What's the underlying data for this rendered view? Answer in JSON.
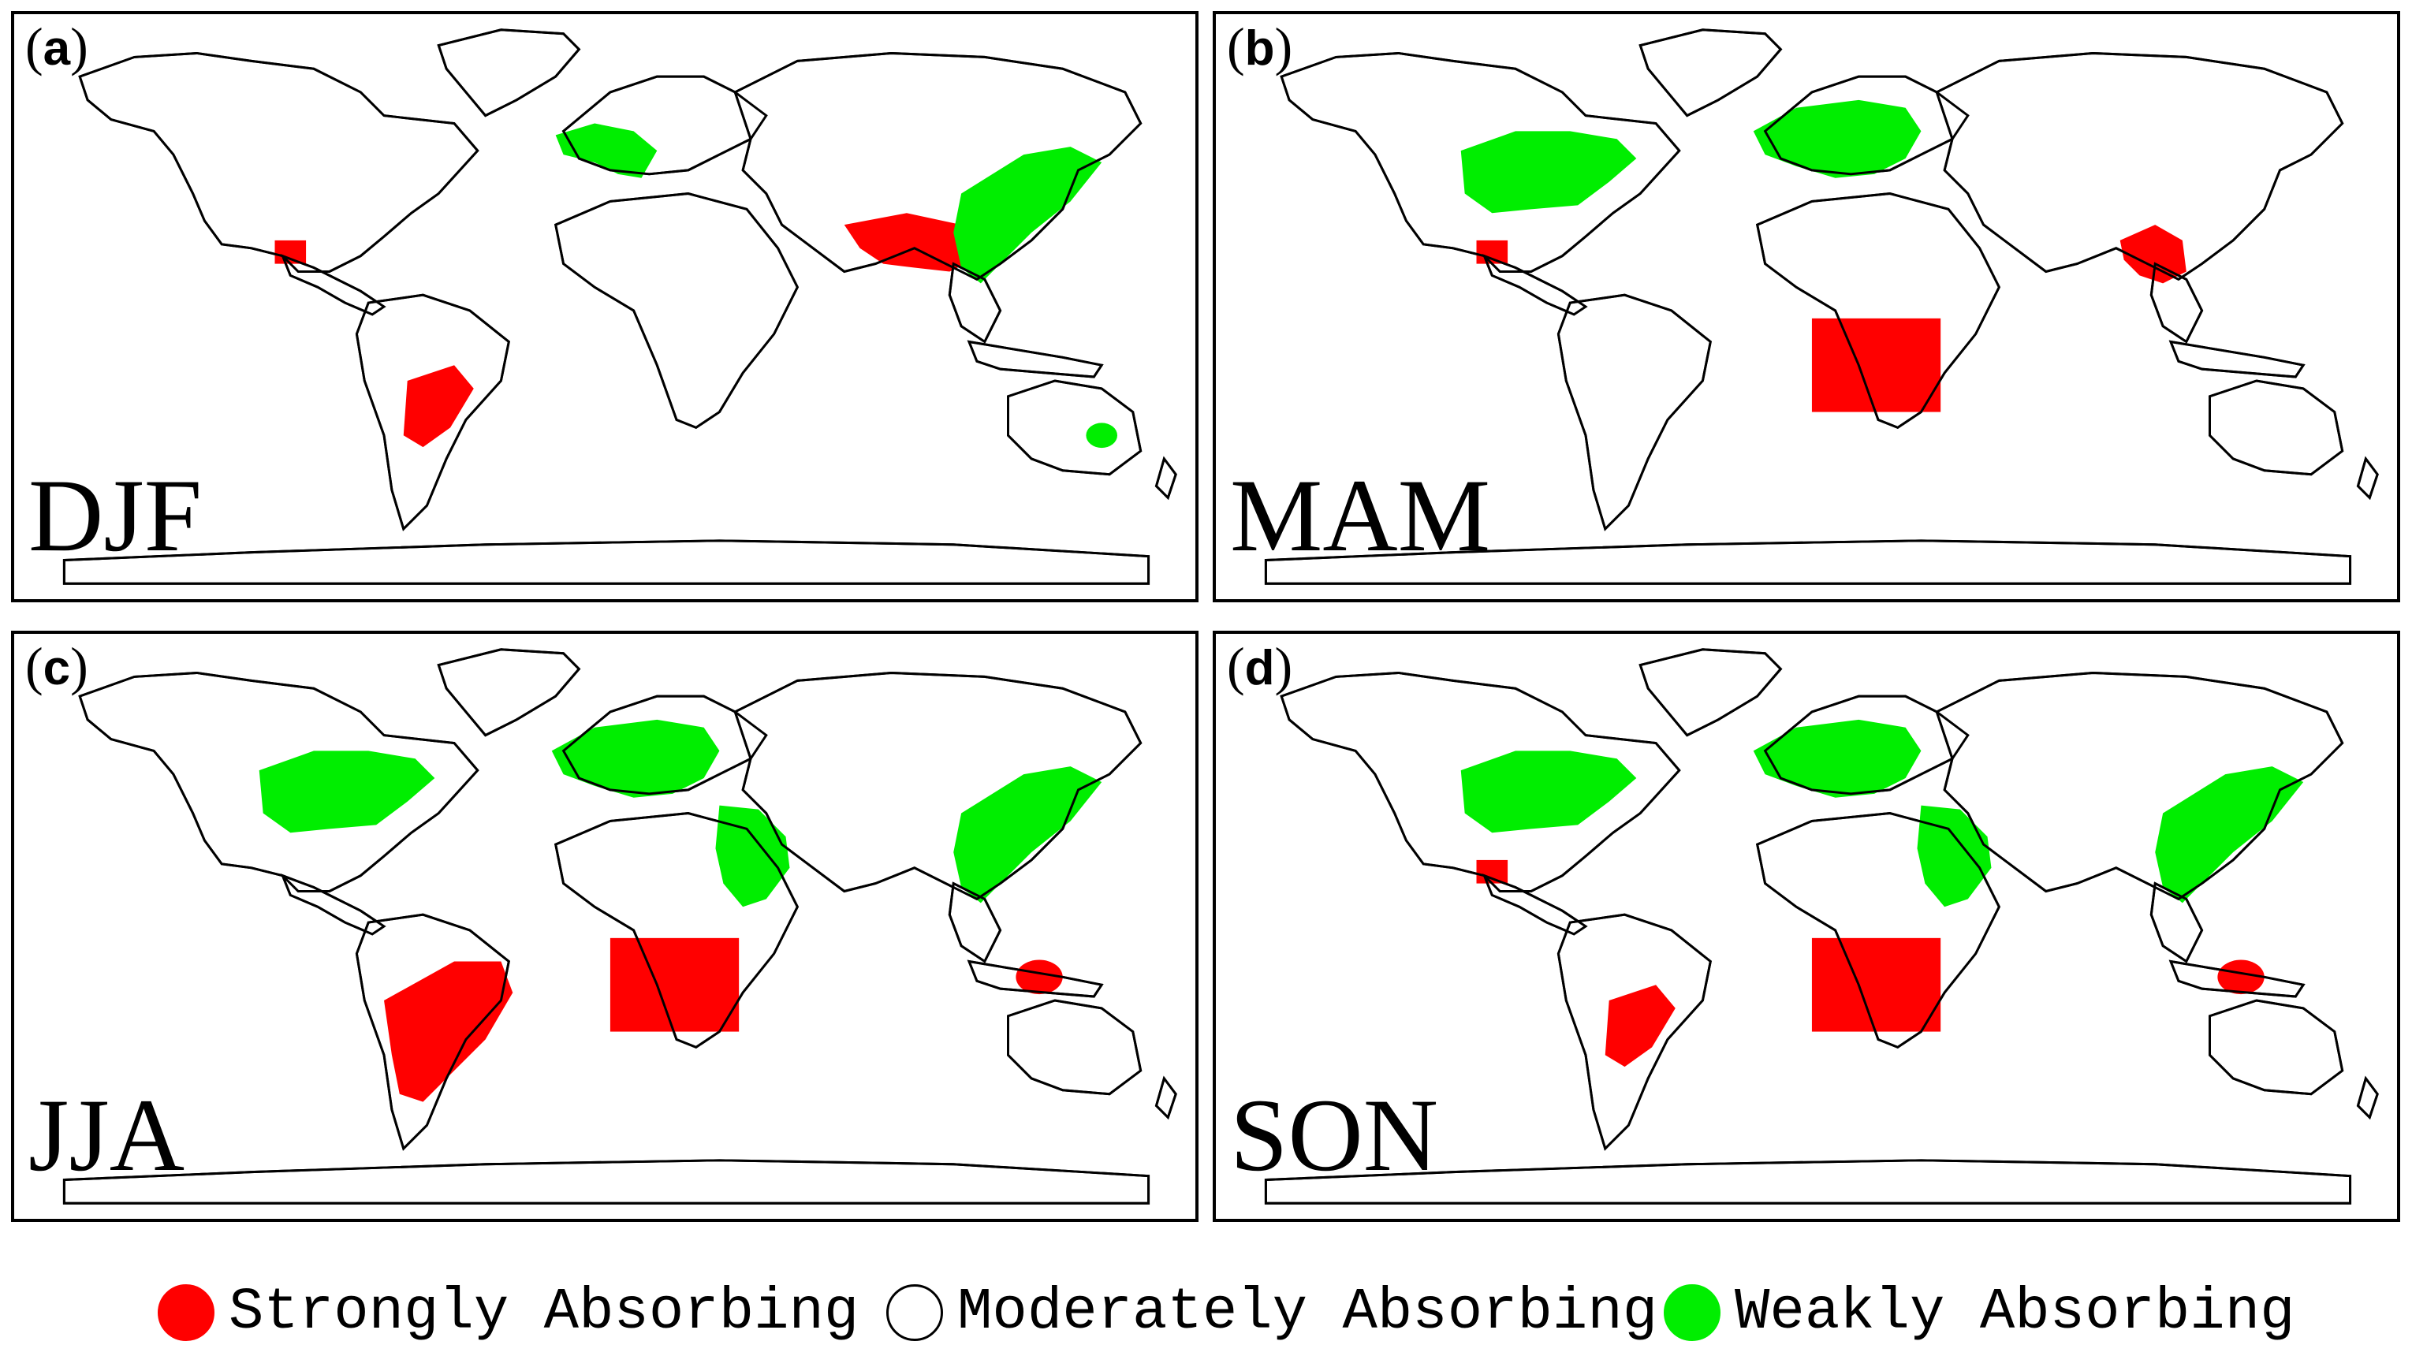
{
  "colors": {
    "strong": "#ff0000",
    "moderate": "#ffffff",
    "weak": "#00ee00",
    "outline": "#000000"
  },
  "panels": [
    {
      "letter": "a",
      "season": "DJF",
      "strong": [
        "central-america",
        "south-america-southeast",
        "south-asia"
      ],
      "weak": [
        "western-europe",
        "east-asia",
        "australia-southeast"
      ]
    },
    {
      "letter": "b",
      "season": "MAM",
      "strong": [
        "central-america",
        "southeast-asia",
        "southern-africa"
      ],
      "weak": [
        "eastern-north-america",
        "europe"
      ]
    },
    {
      "letter": "c",
      "season": "JJA",
      "strong": [
        "south-america-east",
        "southern-africa",
        "northern-australia"
      ],
      "weak": [
        "eastern-north-america",
        "europe",
        "middle-east",
        "east-asia"
      ]
    },
    {
      "letter": "d",
      "season": "SON",
      "strong": [
        "central-america",
        "south-america-southeast",
        "southern-africa",
        "northern-australia"
      ],
      "weak": [
        "eastern-north-america",
        "europe",
        "middle-east",
        "east-asia"
      ]
    }
  ],
  "legend": [
    {
      "label": "Strongly Absorbing",
      "color": "#ff0000"
    },
    {
      "label": "Moderately Absorbing",
      "color": "#ffffff"
    },
    {
      "label": "Weakly Absorbing",
      "color": "#00ee00"
    }
  ]
}
